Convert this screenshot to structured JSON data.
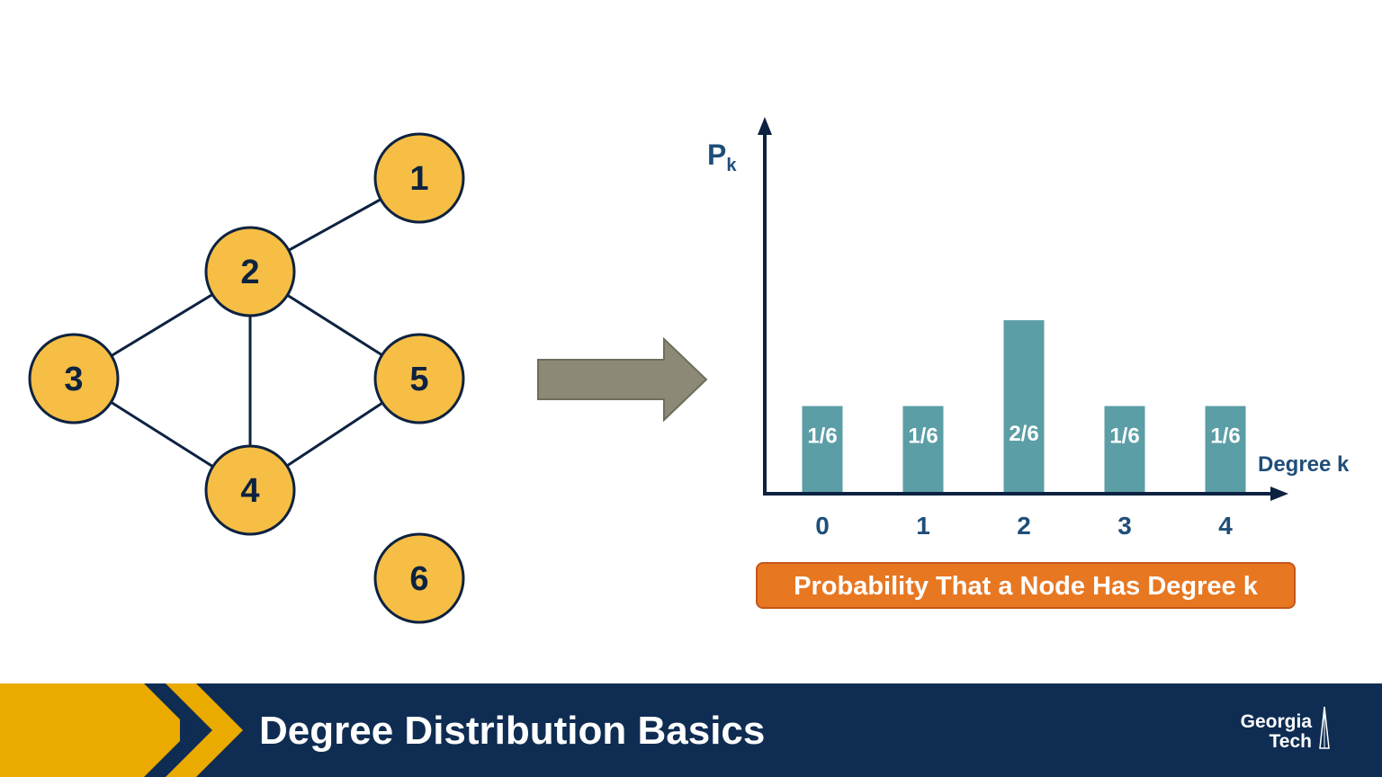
{
  "graph": {
    "nodes": [
      {
        "id": "1",
        "label": "1"
      },
      {
        "id": "2",
        "label": "2"
      },
      {
        "id": "3",
        "label": "3"
      },
      {
        "id": "4",
        "label": "4"
      },
      {
        "id": "5",
        "label": "5"
      },
      {
        "id": "6",
        "label": "6"
      }
    ],
    "edges": [
      [
        "2",
        "1"
      ],
      [
        "2",
        "3"
      ],
      [
        "2",
        "4"
      ],
      [
        "2",
        "5"
      ],
      [
        "3",
        "4"
      ],
      [
        "4",
        "5"
      ]
    ]
  },
  "chart_data": {
    "type": "bar",
    "categories": [
      "0",
      "1",
      "2",
      "3",
      "4"
    ],
    "values": [
      0.1667,
      0.1667,
      0.3333,
      0.1667,
      0.1667
    ],
    "data_labels": [
      "1/6",
      "1/6",
      "2/6",
      "1/6",
      "1/6"
    ],
    "ylabel": "P",
    "ylabel_subscript": "k",
    "xlabel": "Degree k",
    "ylim": [
      0,
      0.7
    ]
  },
  "caption": "Probability That a Node Has Degree k",
  "footer": {
    "title": "Degree Distribution Basics",
    "logo_line1": "Georgia",
    "logo_line2": "Tech"
  },
  "colors": {
    "node_fill": "#f6be45",
    "node_stroke": "#0d2240",
    "bar": "#5b9ea6",
    "axis": "#0d2240",
    "label": "#1f4e79",
    "arrow": "#8c8a76",
    "caption_bg": "#e87722",
    "footer_bg": "#0f2d52",
    "footer_gold": "#eaaa00"
  }
}
